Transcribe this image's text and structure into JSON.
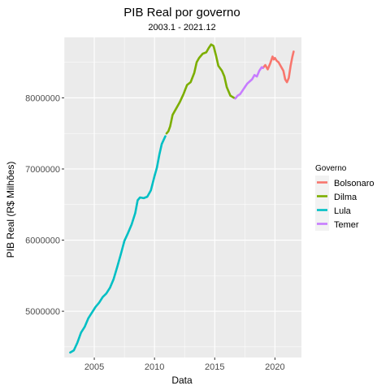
{
  "chart_data": {
    "type": "line",
    "title": "PIB Real por governo",
    "subtitle": "2003.1 - 2021.12",
    "xlabel": "Data",
    "ylabel": "PIB Real (R$ Milhões)",
    "xlim": [
      2002.5,
      2022.2
    ],
    "ylim": [
      4350000,
      8850000
    ],
    "x_ticks": [
      2005,
      2010,
      2015,
      2020
    ],
    "y_ticks": [
      5000000,
      6000000,
      7000000,
      8000000
    ],
    "y_tick_labels": [
      "5000000",
      "6000000",
      "7000000",
      "8000000"
    ],
    "grid": true,
    "legend": {
      "title": "Governo",
      "position": "right"
    },
    "series": [
      {
        "name": "Bolsonaro",
        "color": "#F8766D",
        "points": [
          [
            2019.0,
            8420000
          ],
          [
            2019.2,
            8460000
          ],
          [
            2019.4,
            8400000
          ],
          [
            2019.6,
            8480000
          ],
          [
            2019.8,
            8580000
          ],
          [
            2019.9,
            8540000
          ],
          [
            2020.0,
            8560000
          ],
          [
            2020.15,
            8520000
          ],
          [
            2020.3,
            8500000
          ],
          [
            2020.5,
            8440000
          ],
          [
            2020.7,
            8380000
          ],
          [
            2020.85,
            8260000
          ],
          [
            2021.0,
            8220000
          ],
          [
            2021.15,
            8280000
          ],
          [
            2021.3,
            8450000
          ],
          [
            2021.45,
            8580000
          ],
          [
            2021.55,
            8650000
          ]
        ]
      },
      {
        "name": "Dilma",
        "color": "#7CAE00",
        "points": [
          [
            2011.0,
            7500000
          ],
          [
            2011.15,
            7530000
          ],
          [
            2011.3,
            7600000
          ],
          [
            2011.5,
            7760000
          ],
          [
            2011.8,
            7850000
          ],
          [
            2012.1,
            7940000
          ],
          [
            2012.4,
            8050000
          ],
          [
            2012.7,
            8180000
          ],
          [
            2013.0,
            8220000
          ],
          [
            2013.3,
            8350000
          ],
          [
            2013.5,
            8500000
          ],
          [
            2013.7,
            8560000
          ],
          [
            2014.0,
            8620000
          ],
          [
            2014.3,
            8640000
          ],
          [
            2014.5,
            8700000
          ],
          [
            2014.7,
            8750000
          ],
          [
            2014.9,
            8730000
          ],
          [
            2015.1,
            8600000
          ],
          [
            2015.3,
            8450000
          ],
          [
            2015.6,
            8380000
          ],
          [
            2015.8,
            8300000
          ],
          [
            2016.0,
            8150000
          ],
          [
            2016.3,
            8030000
          ],
          [
            2016.6,
            8000000
          ]
        ]
      },
      {
        "name": "Lula",
        "color": "#00BFC4",
        "points": [
          [
            2003.0,
            4420000
          ],
          [
            2003.3,
            4450000
          ],
          [
            2003.6,
            4560000
          ],
          [
            2003.9,
            4700000
          ],
          [
            2004.2,
            4780000
          ],
          [
            2004.5,
            4900000
          ],
          [
            2004.8,
            4980000
          ],
          [
            2005.1,
            5060000
          ],
          [
            2005.4,
            5120000
          ],
          [
            2005.7,
            5200000
          ],
          [
            2006.0,
            5250000
          ],
          [
            2006.3,
            5330000
          ],
          [
            2006.6,
            5450000
          ],
          [
            2006.9,
            5620000
          ],
          [
            2007.2,
            5800000
          ],
          [
            2007.5,
            5990000
          ],
          [
            2007.8,
            6100000
          ],
          [
            2008.1,
            6220000
          ],
          [
            2008.4,
            6380000
          ],
          [
            2008.6,
            6560000
          ],
          [
            2008.8,
            6600000
          ],
          [
            2009.1,
            6590000
          ],
          [
            2009.4,
            6610000
          ],
          [
            2009.7,
            6700000
          ],
          [
            2010.0,
            6900000
          ],
          [
            2010.2,
            7020000
          ],
          [
            2010.4,
            7200000
          ],
          [
            2010.6,
            7350000
          ],
          [
            2010.9,
            7460000
          ]
        ]
      },
      {
        "name": "Temer",
        "color": "#C77CFF",
        "points": [
          [
            2016.7,
            7990000
          ],
          [
            2016.9,
            8030000
          ],
          [
            2017.1,
            8050000
          ],
          [
            2017.3,
            8100000
          ],
          [
            2017.5,
            8150000
          ],
          [
            2017.7,
            8200000
          ],
          [
            2017.9,
            8230000
          ],
          [
            2018.1,
            8260000
          ],
          [
            2018.3,
            8320000
          ],
          [
            2018.5,
            8300000
          ],
          [
            2018.7,
            8380000
          ],
          [
            2018.9,
            8430000
          ],
          [
            2019.0,
            8420000
          ]
        ]
      }
    ]
  }
}
